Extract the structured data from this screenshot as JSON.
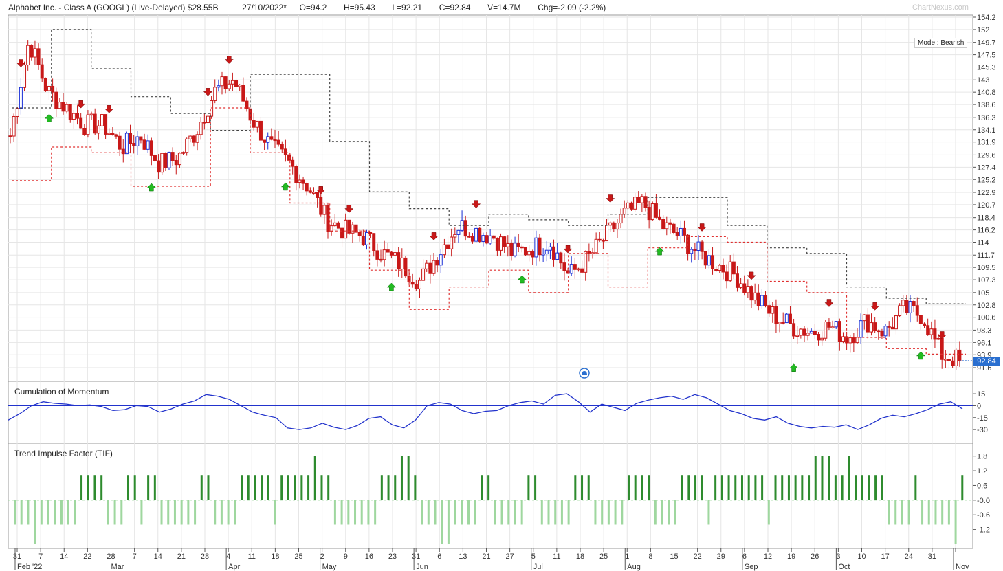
{
  "header": {
    "title": "Alphabet Inc. - Class A (GOOGL) (Live-Delayed) $28.55B",
    "date": "27/10/2022*",
    "open": "O=94.2",
    "high": "H=95.43",
    "low": "L=92.21",
    "close": "C=92.84",
    "volume": "V=14.7M",
    "change": "Chg=-2.09 (-2.2%)"
  },
  "watermark": "ChartNexus.com",
  "mode_label": "Mode : Bearish",
  "last_price_label": "92.84",
  "panels": {
    "momentum_title": "Cumulation of Momentum",
    "tif_title": "Trend Impulse Factor (TIF)"
  },
  "colors": {
    "up": "#1a2fd6",
    "down": "#c81818",
    "arrow_up": "#22bb22",
    "arrow_down": "#c81818",
    "momentum_line": "#2233cc",
    "tif_pos": "#2e8b2e",
    "tif_neg": "#9fd79f",
    "upper_band": "#444444",
    "lower_band": "#e03030",
    "grid": "#e6e6e6"
  },
  "chart_data": [
    {
      "type": "candlestick",
      "title": "Alphabet Inc. - Class A (GOOGL) (Live-Delayed) $28.55B",
      "y_ticks": [
        91.6,
        93.9,
        96.1,
        98.3,
        100.6,
        102.8,
        105,
        107.3,
        109.5,
        111.7,
        114,
        116.2,
        118.4,
        120.7,
        122.9,
        125.2,
        127.4,
        129.6,
        131.9,
        134.1,
        136.3,
        138.6,
        140.8,
        143,
        145.3,
        147.5,
        149.7,
        152,
        154.2
      ],
      "ylim": [
        90.6,
        155.0
      ],
      "x_ticks": [
        {
          "label": "31",
          "month": "Feb '22"
        },
        {
          "label": "7"
        },
        {
          "label": "14"
        },
        {
          "label": "22"
        },
        {
          "label": "28",
          "month": "Mar"
        },
        {
          "label": "7"
        },
        {
          "label": "14"
        },
        {
          "label": "21"
        },
        {
          "label": "28"
        },
        {
          "label": "4",
          "month": "Apr"
        },
        {
          "label": "11"
        },
        {
          "label": "18"
        },
        {
          "label": "25"
        },
        {
          "label": "2",
          "month": "May"
        },
        {
          "label": "9"
        },
        {
          "label": "16"
        },
        {
          "label": "23"
        },
        {
          "label": "31",
          "month": "Jun"
        },
        {
          "label": "6"
        },
        {
          "label": "13"
        },
        {
          "label": "21"
        },
        {
          "label": "27"
        },
        {
          "label": "5",
          "month": "Jul"
        },
        {
          "label": "11"
        },
        {
          "label": "18"
        },
        {
          "label": "25"
        },
        {
          "label": "1",
          "month": "Aug"
        },
        {
          "label": "8"
        },
        {
          "label": "15"
        },
        {
          "label": "22"
        },
        {
          "label": "29"
        },
        {
          "label": "6",
          "month": "Sep"
        },
        {
          "label": "12"
        },
        {
          "label": "19"
        },
        {
          "label": "26"
        },
        {
          "label": "3",
          "month": "Oct"
        },
        {
          "label": "10"
        },
        {
          "label": "17"
        },
        {
          "label": "24"
        },
        {
          "label": "31"
        },
        {
          "label": "",
          "month": "Nov"
        }
      ],
      "weekly_close_path": [
        133,
        150,
        141,
        138,
        135,
        135,
        131,
        133,
        128,
        129,
        134,
        141,
        143,
        136,
        131,
        128,
        124,
        118,
        116,
        115,
        112,
        110,
        107,
        112,
        117,
        116,
        115,
        112,
        113,
        114,
        108,
        111,
        115,
        119,
        121,
        117,
        115,
        112,
        110,
        108,
        104,
        101,
        99,
        98,
        99,
        97,
        100,
        98,
        102,
        101,
        94,
        92.84
      ],
      "upper_band_steps": [
        138,
        152,
        145,
        140,
        137,
        134,
        144,
        144,
        132,
        123,
        120,
        117,
        119,
        118,
        117,
        119,
        122,
        122,
        117,
        113,
        112,
        106,
        104,
        103
      ],
      "lower_band_steps": [
        125,
        131,
        130,
        124,
        124,
        138,
        130,
        121,
        116,
        109,
        102,
        106,
        109,
        105,
        112,
        106,
        113,
        115,
        114,
        107,
        105,
        97,
        95,
        94
      ],
      "last_value": 92.84
    },
    {
      "type": "line",
      "title": "Cumulation of Momentum",
      "y_ticks": [
        15,
        0,
        -15,
        -30
      ],
      "ylim": [
        -42,
        22
      ],
      "values": [
        -18,
        -10,
        0,
        5,
        3,
        2,
        0,
        1,
        -1,
        -6,
        -5,
        0,
        -1,
        -8,
        -4,
        2,
        6,
        14,
        12,
        8,
        0,
        -8,
        -12,
        -15,
        -28,
        -30,
        -28,
        -22,
        -27,
        -30,
        -25,
        -16,
        -14,
        -24,
        -28,
        -18,
        0,
        4,
        2,
        -6,
        -10,
        -7,
        -6,
        0,
        4,
        6,
        2,
        13,
        15,
        5,
        -8,
        2,
        -2,
        -6,
        3,
        7,
        10,
        12,
        8,
        14,
        10,
        2,
        -6,
        -10,
        -16,
        -18,
        -14,
        -22,
        -26,
        -28,
        -26,
        -27,
        -24,
        -30,
        -24,
        -16,
        -12,
        -14,
        -10,
        -5,
        2,
        5,
        -4
      ],
      "zero_line": 0
    },
    {
      "type": "bar",
      "title": "Trend Impulse Factor (TIF)",
      "y_ticks": [
        1.8,
        1.2,
        0.6,
        -0.0,
        -0.6,
        -1.2
      ],
      "ylim": [
        -1.8,
        2.1
      ],
      "values": [
        -1,
        -1,
        -1,
        -1.8,
        -1,
        -1,
        -1,
        -1,
        -1,
        -1,
        1,
        1,
        1,
        1,
        -1,
        -1,
        -1,
        1,
        1,
        -1,
        1,
        1,
        -1,
        -1,
        -1,
        -1,
        -1,
        -1,
        1,
        1,
        -1,
        -1,
        -1,
        -1,
        1,
        1,
        1,
        1,
        1,
        -1,
        1,
        1,
        1,
        1,
        1,
        2,
        1,
        1,
        -1,
        -1,
        -1,
        -1,
        -1,
        -1,
        -1,
        1,
        1,
        1,
        2,
        2,
        1,
        -1,
        -1,
        -1,
        -1.8,
        -1.8,
        -1,
        -1,
        -1,
        -1,
        1,
        1,
        -1,
        -1,
        -1,
        -1,
        -1,
        1,
        1,
        -1,
        -1,
        -1,
        -1,
        -1,
        1,
        1,
        1,
        -1,
        -1,
        -1,
        -1,
        -1,
        1,
        1,
        1,
        1,
        -1,
        -1,
        -1,
        -1,
        1,
        1,
        1,
        1,
        -1,
        1,
        1,
        1,
        1,
        1,
        1,
        1,
        1,
        -1,
        1,
        1,
        1,
        1,
        1,
        1,
        2,
        2,
        2,
        1,
        1,
        2,
        1,
        1,
        1,
        1,
        1,
        -1,
        -1,
        -1,
        -1,
        1,
        -1,
        -1,
        -1,
        -1,
        -1,
        -1.8,
        1
      ]
    }
  ]
}
